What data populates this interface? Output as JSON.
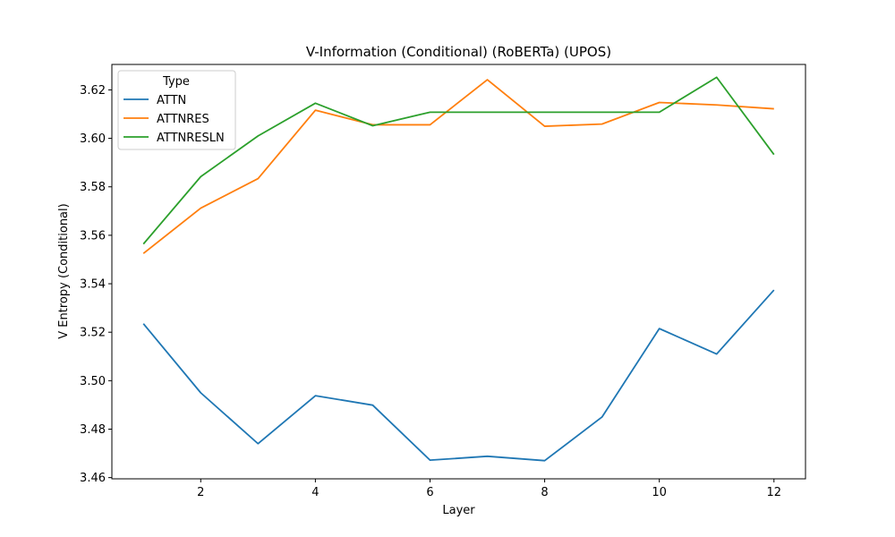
{
  "chart_data": {
    "type": "line",
    "title": "V-Information (Conditional) (RoBERTa) (UPOS)",
    "xlabel": "Layer",
    "ylabel": "V Entropy (Conditional)",
    "xlim": [
      0.45,
      12.55
    ],
    "ylim": [
      3.4595,
      3.6305
    ],
    "xticks": [
      2,
      4,
      6,
      8,
      10,
      12
    ],
    "yticks": [
      3.46,
      3.48,
      3.5,
      3.52,
      3.54,
      3.56,
      3.58,
      3.6,
      3.62
    ],
    "ytick_labels": [
      "3.46",
      "3.48",
      "3.50",
      "3.52",
      "3.54",
      "3.56",
      "3.58",
      "3.60",
      "3.62"
    ],
    "grid": false,
    "legend": {
      "title": "Type",
      "placement": "top-left"
    },
    "x": [
      1,
      2,
      3,
      4,
      5,
      6,
      7,
      8,
      9,
      10,
      11,
      12
    ],
    "series": [
      {
        "name": "ATTN",
        "color": "#1f77b4",
        "values": [
          3.5235,
          3.495,
          3.474,
          3.4938,
          3.4899,
          3.4672,
          3.4688,
          3.467,
          3.485,
          3.5215,
          3.511,
          3.5374
        ]
      },
      {
        "name": "ATTNRES",
        "color": "#ff7f0e",
        "values": [
          3.5525,
          3.5712,
          3.5834,
          3.6116,
          3.6056,
          3.6056,
          3.6242,
          3.605,
          3.6059,
          3.6148,
          3.6138,
          3.6122
        ]
      },
      {
        "name": "ATTNRESLN",
        "color": "#2ca02c",
        "values": [
          3.5564,
          3.5842,
          3.601,
          3.6145,
          3.6052,
          3.6108,
          3.6108,
          3.6108,
          3.6108,
          3.6108,
          3.6252,
          3.5933
        ]
      }
    ]
  }
}
